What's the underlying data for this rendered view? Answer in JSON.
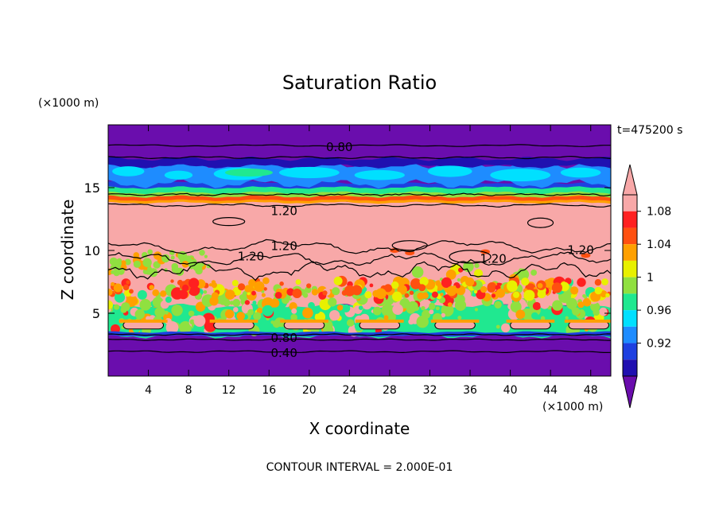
{
  "chart_data": {
    "type": "heatmap",
    "title": "Saturation Ratio",
    "xlabel": "X coordinate",
    "ylabel": "Z coordinate",
    "x_unit": "(×1000 m)",
    "y_unit": "(×1000 m)",
    "time_label": "t=475200 s",
    "footer": "CONTOUR INTERVAL = 2.000E-01",
    "xlim": [
      0,
      50
    ],
    "ylim": [
      0,
      20
    ],
    "x_ticks": [
      4,
      8,
      12,
      16,
      20,
      24,
      28,
      32,
      36,
      40,
      44,
      48
    ],
    "y_ticks": [
      5,
      10,
      15
    ],
    "colorbar": {
      "ticks": [
        "0.92",
        "0.96",
        "1",
        "1.04",
        "1.08"
      ],
      "levels": [
        0.9,
        0.92,
        0.94,
        0.96,
        0.98,
        1.0,
        1.02,
        1.04,
        1.06,
        1.08,
        1.1
      ],
      "colors": [
        "#6a0dad",
        "#2010b0",
        "#1e40e0",
        "#1e8cff",
        "#00e0ff",
        "#20e890",
        "#90e040",
        "#e8f000",
        "#ffa000",
        "#ff5010",
        "#ff2020",
        "#f8a8a8"
      ]
    },
    "bands": [
      {
        "z": [
          0.0,
          3.3
        ],
        "value": "below 0.90"
      },
      {
        "z": [
          3.3,
          5.7
        ],
        "value": "0.98 to 1.02"
      },
      {
        "z": [
          5.7,
          7.5
        ],
        "value": "above 1.10 with 1.04 to 1.10 patches"
      },
      {
        "z": [
          7.5,
          14.0
        ],
        "value": "above 1.10"
      },
      {
        "z": [
          14.0,
          15.2
        ],
        "value": "1.00 to 1.10"
      },
      {
        "z": [
          15.2,
          17.2
        ],
        "value": "0.92 to 0.98"
      },
      {
        "z": [
          17.2,
          20.0
        ],
        "value": "below 0.90"
      }
    ],
    "contour_labels": [
      {
        "text": "0.80",
        "x": 23.0,
        "z": 18.3
      },
      {
        "text": "1.20",
        "x": 17.5,
        "z": 13.2
      },
      {
        "text": "1.20",
        "x": 17.5,
        "z": 10.4
      },
      {
        "text": "1.20",
        "x": 14.2,
        "z": 9.6
      },
      {
        "text": "1.20",
        "x": 38.3,
        "z": 9.4
      },
      {
        "text": "1.20",
        "x": 47.0,
        "z": 10.1
      },
      {
        "text": "0.80",
        "x": 17.5,
        "z": 3.1
      },
      {
        "text": "0.40",
        "x": 17.5,
        "z": 1.9
      }
    ]
  }
}
